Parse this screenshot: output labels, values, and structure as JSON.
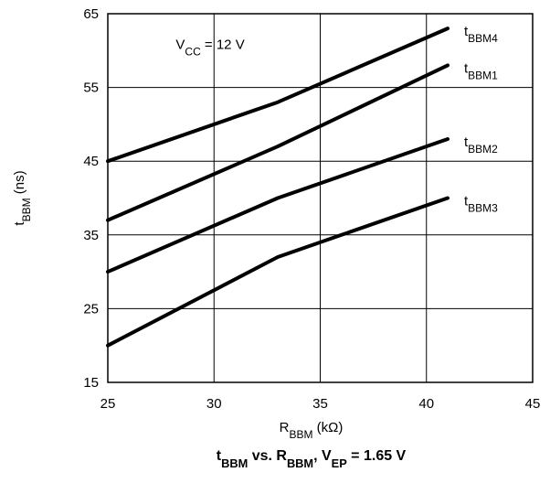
{
  "chart_data": {
    "type": "line",
    "title": {
      "parts": [
        {
          "text": "t",
          "sub": "BBM"
        },
        {
          "text": " vs. R",
          "sub": "BBM"
        },
        {
          "text": ", V",
          "sub": "EP"
        },
        {
          "text": " = 1.65 V",
          "sub": ""
        }
      ]
    },
    "xlabel": {
      "main": "R",
      "sub": "BBM",
      "unit": " (kΩ)"
    },
    "ylabel": {
      "main": "t",
      "sub": "BBM",
      "unit": " (ns)"
    },
    "xlim": [
      25,
      45
    ],
    "ylim": [
      15,
      65
    ],
    "xticks": [
      25,
      30,
      35,
      40,
      45
    ],
    "yticks": [
      15,
      25,
      35,
      45,
      55,
      65
    ],
    "grid": true,
    "annotation": {
      "main": "V",
      "sub": "CC",
      "rest": " = 12 V"
    },
    "series": [
      {
        "name": "tBBM4",
        "label_main": "t",
        "label_sub": "BBM4",
        "x": [
          25,
          33,
          41
        ],
        "y": [
          45,
          53,
          63
        ]
      },
      {
        "name": "tBBM1",
        "label_main": "t",
        "label_sub": "BBM1",
        "x": [
          25,
          33,
          41
        ],
        "y": [
          37,
          47,
          58
        ]
      },
      {
        "name": "tBBM2",
        "label_main": "t",
        "label_sub": "BBM2",
        "x": [
          25,
          33,
          41
        ],
        "y": [
          30,
          40,
          48
        ]
      },
      {
        "name": "tBBM3",
        "label_main": "t",
        "label_sub": "BBM3",
        "x": [
          25,
          33,
          41
        ],
        "y": [
          20,
          32,
          40
        ]
      }
    ]
  }
}
